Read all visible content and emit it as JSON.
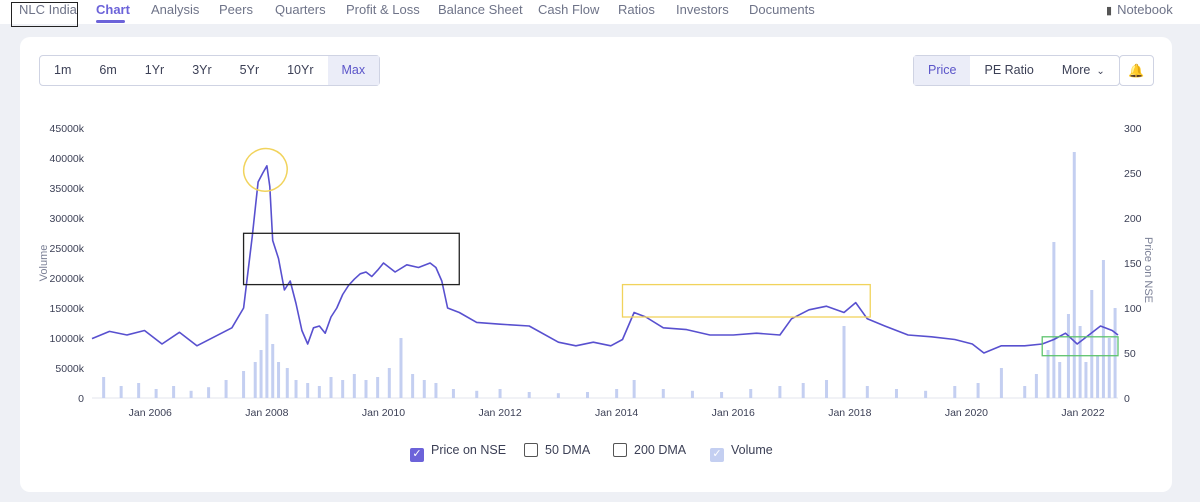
{
  "nav": {
    "items": [
      "NLC India",
      "Chart",
      "Analysis",
      "Peers",
      "Quarters",
      "Profit & Loss",
      "Balance Sheet",
      "Cash Flow",
      "Ratios",
      "Investors",
      "Documents"
    ],
    "active": "Chart",
    "notebook": "Notebook"
  },
  "ranges": {
    "buttons": [
      "1m",
      "6m",
      "1Yr",
      "3Yr",
      "5Yr",
      "10Yr",
      "Max"
    ],
    "selected": "Max"
  },
  "metrics": {
    "buttons": [
      "Price",
      "PE Ratio",
      "More"
    ],
    "selected": "Price"
  },
  "icons": {
    "bell": "bell-icon",
    "notebook": "book-icon",
    "more": "chevron-down-icon"
  },
  "colors": {
    "accent": "#6c63d9",
    "price_line": "#5850cf",
    "volume_bars": "#c4cff1",
    "annotation_yellow": "#f1d35c",
    "annotation_green": "#5ec46e",
    "annotation_black": "#222222"
  },
  "legend": [
    {
      "label": "Price on NSE",
      "checked": true
    },
    {
      "label": "50 DMA",
      "checked": false
    },
    {
      "label": "200 DMA",
      "checked": false
    },
    {
      "label": "Volume",
      "checked": true
    }
  ],
  "chart_data": {
    "type": "line",
    "y_left_label": "Volume",
    "y_right_label": "Price on NSE",
    "y_left_ticks": [
      "0",
      "5000k",
      "10000k",
      "15000k",
      "20000k",
      "25000k",
      "30000k",
      "35000k",
      "40000k",
      "45000k"
    ],
    "y_left_range": [
      0,
      45000
    ],
    "y_right_ticks": [
      "0",
      "50",
      "100",
      "150",
      "200",
      "250",
      "300"
    ],
    "y_right_range": [
      0,
      300
    ],
    "x_ticks": [
      "Jan 2006",
      "Jan 2008",
      "Jan 2010",
      "Jan 2012",
      "Jan 2014",
      "Jan 2016",
      "Jan 2018",
      "Jan 2020",
      "Jan 2022"
    ],
    "x_tick_years": [
      2006,
      2008,
      2010,
      2012,
      2014,
      2016,
      2018,
      2020,
      2022
    ],
    "x_range": [
      2005.0,
      2022.6
    ],
    "price": {
      "name": "Price on NSE",
      "x": [
        2005.0,
        2005.3,
        2005.6,
        2005.9,
        2006.2,
        2006.5,
        2006.8,
        2007.1,
        2007.4,
        2007.6,
        2007.75,
        2007.85,
        2007.93,
        2008.0,
        2008.05,
        2008.1,
        2008.2,
        2008.3,
        2008.4,
        2008.5,
        2008.6,
        2008.7,
        2008.8,
        2008.9,
        2009.0,
        2009.1,
        2009.2,
        2009.3,
        2009.4,
        2009.5,
        2009.6,
        2009.7,
        2009.8,
        2009.9,
        2010.0,
        2010.2,
        2010.4,
        2010.6,
        2010.8,
        2010.9,
        2011.0,
        2011.1,
        2011.3,
        2011.6,
        2012.0,
        2012.5,
        2013.0,
        2013.3,
        2013.6,
        2013.9,
        2014.1,
        2014.3,
        2014.5,
        2014.8,
        2015.2,
        2015.6,
        2016.0,
        2016.4,
        2016.8,
        2017.0,
        2017.3,
        2017.6,
        2017.9,
        2018.1,
        2018.3,
        2018.6,
        2019.0,
        2019.4,
        2019.8,
        2020.1,
        2020.3,
        2020.6,
        2021.0,
        2021.3,
        2021.5,
        2021.7,
        2021.9,
        2022.1,
        2022.3,
        2022.5,
        2022.6
      ],
      "y": [
        66,
        74,
        70,
        75,
        60,
        73,
        58,
        68,
        78,
        100,
        180,
        240,
        250,
        258,
        235,
        175,
        155,
        120,
        130,
        105,
        75,
        60,
        78,
        80,
        72,
        90,
        100,
        115,
        125,
        132,
        138,
        140,
        135,
        142,
        150,
        140,
        148,
        145,
        150,
        145,
        130,
        100,
        95,
        84,
        82,
        80,
        62,
        58,
        62,
        58,
        65,
        95,
        90,
        78,
        76,
        70,
        70,
        72,
        70,
        88,
        98,
        102,
        95,
        106,
        88,
        80,
        70,
        68,
        65,
        60,
        50,
        58,
        58,
        60,
        65,
        72,
        60,
        70,
        80,
        75,
        70
      ]
    },
    "volume": {
      "name": "Volume",
      "x": [
        2005.2,
        2005.5,
        2005.8,
        2006.1,
        2006.4,
        2006.7,
        2007.0,
        2007.3,
        2007.6,
        2007.8,
        2007.9,
        2008.0,
        2008.1,
        2008.2,
        2008.35,
        2008.5,
        2008.7,
        2008.9,
        2009.1,
        2009.3,
        2009.5,
        2009.7,
        2009.9,
        2010.1,
        2010.3,
        2010.5,
        2010.7,
        2010.9,
        2011.2,
        2011.6,
        2012.0,
        2012.5,
        2013.0,
        2013.5,
        2014.0,
        2014.3,
        2014.8,
        2015.3,
        2015.8,
        2016.3,
        2016.8,
        2017.2,
        2017.6,
        2017.9,
        2018.3,
        2018.8,
        2019.3,
        2019.8,
        2020.2,
        2020.6,
        2021.0,
        2021.2,
        2021.4,
        2021.5,
        2021.6,
        2021.75,
        2021.85,
        2021.95,
        2022.05,
        2022.15,
        2022.25,
        2022.35,
        2022.45,
        2022.55
      ],
      "values": [
        3500,
        2000,
        2500,
        1500,
        2000,
        1200,
        1800,
        3000,
        4500,
        6000,
        8000,
        14000,
        9000,
        6000,
        5000,
        3000,
        2500,
        2000,
        3500,
        3000,
        4000,
        3000,
        3500,
        5000,
        10000,
        4000,
        3000,
        2500,
        1500,
        1200,
        1500,
        1000,
        800,
        1000,
        1500,
        3000,
        1500,
        1200,
        1000,
        1500,
        2000,
        2500,
        3000,
        12000,
        2000,
        1500,
        1200,
        2000,
        2500,
        5000,
        2000,
        4000,
        8000,
        26000,
        6000,
        14000,
        41000,
        12000,
        6000,
        18000,
        7000,
        23000,
        10000,
        15000
      ]
    },
    "annotations": [
      {
        "shape": "ellipse",
        "color": "yellow",
        "x0": 2007.6,
        "x1": 2008.35,
        "y0": 230,
        "y1": 277
      },
      {
        "shape": "rect",
        "color": "black",
        "x0": 2007.6,
        "x1": 2011.3,
        "y0": 126,
        "y1": 183
      },
      {
        "shape": "rect",
        "color": "yellow",
        "x0": 2014.1,
        "x1": 2018.35,
        "y0": 90,
        "y1": 126
      },
      {
        "shape": "rect",
        "color": "green",
        "x0": 2021.3,
        "x1": 2022.6,
        "y0": 47,
        "y1": 68
      }
    ]
  }
}
